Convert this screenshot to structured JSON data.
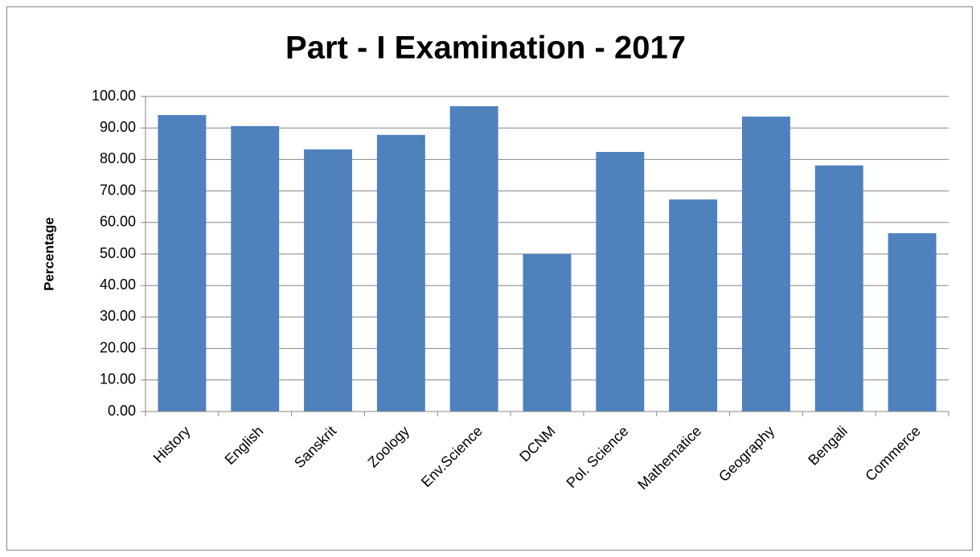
{
  "chart_data": {
    "type": "bar",
    "title": "Part - I Examination - 2017",
    "y_label": "Percentage",
    "categories": [
      "History",
      "English",
      "Sanskrit",
      "Zoology",
      "Env.Science",
      "DCNM",
      "Pol. Science",
      "Mathematice",
      "Geography",
      "Bengali",
      "Commerce"
    ],
    "values": [
      94.1,
      90.6,
      83.2,
      87.8,
      96.9,
      50.0,
      82.4,
      67.3,
      93.6,
      78.1,
      56.6
    ],
    "color": "#4f81bd",
    "ylim": [
      0,
      100
    ],
    "yticks": [
      {
        "value": 0,
        "label": "0.00"
      },
      {
        "value": 10,
        "label": "10.00"
      },
      {
        "value": 20,
        "label": "20.00"
      },
      {
        "value": 30,
        "label": "30.00"
      },
      {
        "value": 40,
        "label": "40.00"
      },
      {
        "value": 50,
        "label": "50.00"
      },
      {
        "value": 60,
        "label": "60.00"
      },
      {
        "value": 70,
        "label": "70.00"
      },
      {
        "value": 80,
        "label": "80.00"
      },
      {
        "value": 90,
        "label": "90.00"
      },
      {
        "value": 100,
        "label": "100.00"
      }
    ],
    "grid": true
  }
}
